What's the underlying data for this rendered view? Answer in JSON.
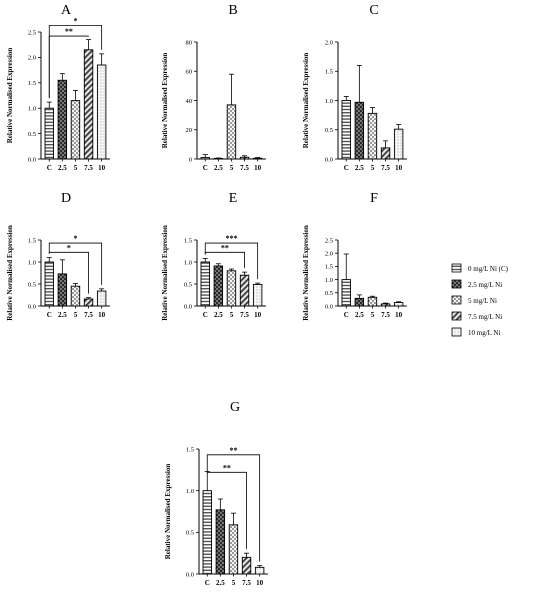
{
  "chart_data": [
    {
      "letter": "A",
      "type": "bar",
      "ylabel": "Relative Normalised Expression",
      "categories": [
        "C",
        "2.5",
        "5",
        "7.5",
        "10"
      ],
      "yticks": [
        "0.0",
        "0.5",
        "1.0",
        "1.5",
        "2.0",
        "2.5"
      ],
      "ylim": [
        0,
        2.5
      ],
      "values": [
        1.0,
        1.55,
        1.15,
        2.15,
        1.85
      ],
      "errors": [
        0.12,
        0.13,
        0.2,
        0.2,
        0.22
      ],
      "significance": [
        {
          "from": 0,
          "to": 3,
          "label": "**",
          "level": 2.42
        },
        {
          "from": 0,
          "to": 4,
          "label": "*",
          "level": 2.63
        }
      ]
    },
    {
      "letter": "B",
      "type": "bar",
      "ylabel": "Relative Normalised Expression",
      "categories": [
        "C",
        "2.5",
        "5",
        "7.5",
        "10"
      ],
      "yticks": [
        "0",
        "20",
        "40",
        "60",
        "80"
      ],
      "ylim": [
        0,
        80
      ],
      "values": [
        1.0,
        0.3,
        37,
        1.2,
        0.5
      ],
      "errors": [
        2.0,
        0.4,
        21,
        1.0,
        0.5
      ],
      "significance": []
    },
    {
      "letter": "C",
      "type": "bar",
      "ylabel": "Relative Normalised Expression",
      "categories": [
        "C",
        "2.5",
        "5",
        "7.5",
        "10"
      ],
      "yticks": [
        "0.0",
        "0.5",
        "1.0",
        "1.5",
        "2.0"
      ],
      "ylim": [
        0,
        2.0
      ],
      "values": [
        1.0,
        0.97,
        0.78,
        0.19,
        0.51
      ],
      "errors": [
        0.07,
        0.63,
        0.1,
        0.12,
        0.08
      ],
      "significance": []
    },
    {
      "letter": "D",
      "type": "bar",
      "ylabel": "Relative Normalised Expression",
      "categories": [
        "C",
        "2.5",
        "5",
        "7.5",
        "10"
      ],
      "yticks": [
        "0.0",
        "0.5",
        "1.0",
        "1.5"
      ],
      "ylim": [
        0,
        1.5
      ],
      "values": [
        1.0,
        0.73,
        0.45,
        0.16,
        0.34
      ],
      "errors": [
        0.1,
        0.32,
        0.06,
        0.03,
        0.05
      ],
      "significance": [
        {
          "from": 0,
          "to": 3,
          "label": "*",
          "level": 1.22
        },
        {
          "from": 0,
          "to": 4,
          "label": "*",
          "level": 1.43
        }
      ]
    },
    {
      "letter": "E",
      "type": "bar",
      "ylabel": "Relative Normalised Expression",
      "categories": [
        "C",
        "2.5",
        "5",
        "7.5",
        "10"
      ],
      "yticks": [
        "0.0",
        "0.5",
        "1.0",
        "1.5"
      ],
      "ylim": [
        0,
        1.5
      ],
      "values": [
        1.0,
        0.91,
        0.8,
        0.7,
        0.49
      ],
      "errors": [
        0.08,
        0.05,
        0.04,
        0.07,
        0.03
      ],
      "significance": [
        {
          "from": 0,
          "to": 3,
          "label": "**",
          "level": 1.22
        },
        {
          "from": 0,
          "to": 4,
          "label": "***",
          "level": 1.43
        }
      ]
    },
    {
      "letter": "F",
      "type": "bar",
      "ylabel": "Relative Normalised Expression",
      "categories": [
        "C",
        "2.5",
        "5",
        "7.5",
        "10"
      ],
      "yticks": [
        "0.0",
        "0.5",
        "1.0",
        "1.5",
        "2.0",
        "2.5"
      ],
      "ylim": [
        0,
        2.5
      ],
      "values": [
        1.0,
        0.29,
        0.33,
        0.08,
        0.13
      ],
      "errors": [
        0.97,
        0.13,
        0.04,
        0.03,
        0.03
      ],
      "significance": []
    },
    {
      "letter": "G",
      "type": "bar",
      "ylabel": "Relative Normalised Expression",
      "categories": [
        "C",
        "2.5",
        "5",
        "7.5",
        "10"
      ],
      "yticks": [
        "0.0",
        "0.5",
        "1.0",
        "1.5"
      ],
      "ylim": [
        0,
        1.5
      ],
      "values": [
        1.0,
        0.77,
        0.59,
        0.2,
        0.08
      ],
      "errors": [
        0.23,
        0.13,
        0.14,
        0.05,
        0.02
      ],
      "significance": [
        {
          "from": 0,
          "to": 3,
          "label": "**",
          "level": 1.22
        },
        {
          "from": 0,
          "to": 4,
          "label": "**",
          "level": 1.43
        }
      ]
    }
  ],
  "legend": {
    "entries": [
      {
        "label": "0 mg/L Ni (C)",
        "pattern": "horizontal-stripes"
      },
      {
        "label": "2.5 mg/L Ni",
        "pattern": "dark-checker"
      },
      {
        "label": "5 mg/L Ni",
        "pattern": "light-checker"
      },
      {
        "label": "7.5 mg/L Ni",
        "pattern": "diagonal-hatch"
      },
      {
        "label": "10 mg/L Ni",
        "pattern": "fine-grid"
      }
    ]
  }
}
